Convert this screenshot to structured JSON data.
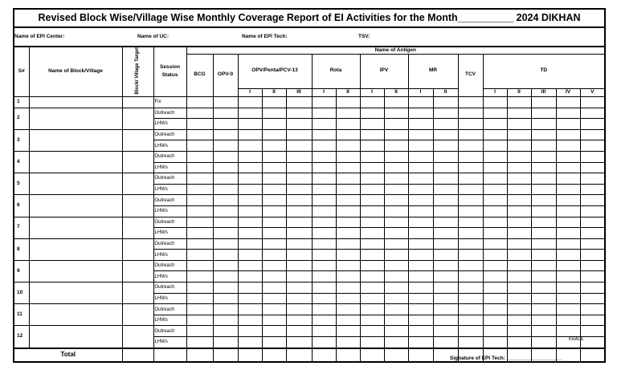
{
  "title": "Revised Block Wise/Village Wise Monthly Coverage Report of EI Activities for the Month__________ 2024 DIKHAN",
  "info": {
    "epi_center": "Name of EPI Center:",
    "uc": "Name of UC:",
    "epi_tech": "Name of EPI Tech:",
    "tsv": "TSV:"
  },
  "headers": {
    "sn": "S#",
    "name": "Name of Block/Village",
    "target": "Block/ Village Target",
    "session": "Session Status",
    "antigen": "Name of Antigen",
    "bcg": "BCG",
    "opv0": "OPV-0",
    "opv": "OPV/Penta/PCV-13",
    "rota": "Rota",
    "ipv": "IPV",
    "mr": "MR",
    "tcv": "TCV",
    "td": "TD",
    "doses": [
      "I",
      "II",
      "III",
      "IV",
      "V"
    ]
  },
  "rows": [
    {
      "sn": "1",
      "sessions": [
        "Fix"
      ]
    },
    {
      "sn": "2",
      "sessions": [
        "Outreach",
        "LHWs"
      ]
    },
    {
      "sn": "3",
      "sessions": [
        "Outreach",
        "LHWs"
      ]
    },
    {
      "sn": "4",
      "sessions": [
        "Outreach",
        "LHWs"
      ]
    },
    {
      "sn": "5",
      "sessions": [
        "Outreach",
        "LHWs"
      ]
    },
    {
      "sn": "6",
      "sessions": [
        "Outreach",
        "LHWs"
      ]
    },
    {
      "sn": "7",
      "sessions": [
        "Outreach",
        "LHWs"
      ]
    },
    {
      "sn": "8",
      "sessions": [
        "Outreach",
        "LHWs"
      ]
    },
    {
      "sn": "9",
      "sessions": [
        "Outreach",
        "LHWs"
      ]
    },
    {
      "sn": "10",
      "sessions": [
        "Outreach",
        "LHWs"
      ]
    },
    {
      "sn": "11",
      "sessions": [
        "Outreach",
        "LHWs"
      ]
    },
    {
      "sn": "12",
      "sessions": [
        "Outreach",
        "LHWs"
      ]
    }
  ],
  "total_label": "Total",
  "footer": {
    "author": "KHALIL",
    "signature": "Signature of EPI Tech: ___________________"
  }
}
